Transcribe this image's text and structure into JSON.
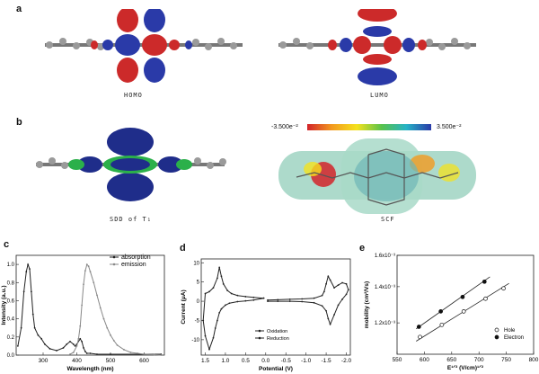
{
  "panels": {
    "a": {
      "label": "a",
      "captions": [
        "HOMO",
        "LUMO"
      ]
    },
    "b": {
      "label": "b",
      "captions": [
        "SDD of T₁",
        "SCF"
      ],
      "colorbar": {
        "min_label": "-3.500e⁻²",
        "max_label": "3.500e⁻²"
      }
    },
    "c": {
      "label": "c"
    },
    "d": {
      "label": "d"
    },
    "e": {
      "label": "e"
    }
  },
  "colors": {
    "orbital_red": "#cc2a2a",
    "orbital_blue": "#2a3aa8",
    "spin_blue": "#1f2d8a",
    "spin_green": "#2bb04a",
    "atom_grey": "#8a8a8a",
    "absorption": "#222222",
    "emission": "#888888"
  },
  "chart_data": [
    {
      "type": "line",
      "panel": "c",
      "xlabel": "Wavelength (nm)",
      "ylabel": "Intensity (a.u.)",
      "xlim": [
        220,
        660
      ],
      "ylim": [
        0,
        1.1
      ],
      "xticks": [
        "300",
        "400",
        "500",
        "600"
      ],
      "yticks": [
        "0.0",
        "0.2",
        "0.4",
        "0.6",
        "0.8",
        "1.0"
      ],
      "legend": "top-right",
      "series": [
        {
          "name": "absorption",
          "x": [
            225,
            235,
            243,
            250,
            255,
            260,
            265,
            270,
            275,
            285,
            295,
            305,
            320,
            340,
            360,
            370,
            380,
            390,
            395,
            400,
            410,
            415,
            420,
            425,
            430,
            440,
            460,
            500,
            600,
            650
          ],
          "y": [
            0.1,
            0.3,
            0.7,
            0.92,
            1.0,
            0.95,
            0.7,
            0.45,
            0.3,
            0.22,
            0.18,
            0.12,
            0.07,
            0.05,
            0.08,
            0.12,
            0.15,
            0.12,
            0.1,
            0.12,
            0.18,
            0.15,
            0.08,
            0.04,
            0.02,
            0.02,
            0.01,
            0.01,
            0.01,
            0.01
          ]
        },
        {
          "name": "emission",
          "x": [
            380,
            390,
            400,
            405,
            410,
            415,
            420,
            425,
            430,
            435,
            440,
            450,
            460,
            470,
            480,
            490,
            500,
            510,
            520,
            540,
            560,
            580,
            600,
            630,
            650
          ],
          "y": [
            0.01,
            0.03,
            0.1,
            0.18,
            0.32,
            0.55,
            0.78,
            0.93,
            1.0,
            0.98,
            0.92,
            0.8,
            0.66,
            0.52,
            0.4,
            0.3,
            0.22,
            0.16,
            0.11,
            0.06,
            0.03,
            0.02,
            0.01,
            0.005,
            0.0
          ]
        }
      ]
    },
    {
      "type": "line",
      "panel": "d",
      "xlabel": "Potential (V)",
      "ylabel": "Current (μA)",
      "xlim": [
        1.6,
        -2.1
      ],
      "ylim": [
        -14,
        11
      ],
      "xticks": [
        "1.5",
        "1.0",
        "0.5",
        "0.0",
        "-0.5",
        "-1.0",
        "-1.5",
        "-2.0"
      ],
      "yticks": [
        "-10",
        "-5",
        "0",
        "5",
        "10"
      ],
      "legend": "bottom-left",
      "series": [
        {
          "name": "Oxidation",
          "x": [
            0.05,
            0.3,
            0.5,
            0.7,
            0.85,
            0.95,
            1.05,
            1.1,
            1.15,
            1.2,
            1.3,
            1.4,
            1.5,
            1.55,
            1.5,
            1.4,
            1.3,
            1.25,
            1.2,
            1.15,
            1.1,
            1.0,
            0.9,
            0.7,
            0.5,
            0.3,
            0.05
          ],
          "y": [
            0.8,
            1.0,
            1.2,
            1.5,
            2.0,
            2.8,
            4.5,
            6.5,
            8.8,
            6.0,
            3.5,
            2.5,
            2.0,
            -5.0,
            -9.0,
            -12.5,
            -9.5,
            -7.0,
            -5.0,
            -3.0,
            -2.0,
            -1.0,
            -0.5,
            -0.1,
            0.1,
            0.3,
            0.8
          ]
        },
        {
          "name": "Reduction",
          "x": [
            -0.05,
            -0.3,
            -0.6,
            -0.9,
            -1.2,
            -1.4,
            -1.5,
            -1.55,
            -1.6,
            -1.7,
            -1.8,
            -1.9,
            -2.0,
            -2.05,
            -2.0,
            -1.9,
            -1.8,
            -1.7,
            -1.6,
            -1.55,
            -1.5,
            -1.45,
            -1.4,
            -1.2,
            -0.9,
            -0.6,
            -0.3,
            -0.05
          ],
          "y": [
            0.0,
            0.0,
            0.0,
            -0.1,
            -0.4,
            -1.2,
            -2.5,
            -4.5,
            -6.0,
            -3.5,
            -1.0,
            0.5,
            1.8,
            3.0,
            4.5,
            4.8,
            4.2,
            3.5,
            5.5,
            6.5,
            4.5,
            2.5,
            1.5,
            0.8,
            0.6,
            0.5,
            0.4,
            0.3
          ]
        }
      ]
    },
    {
      "type": "scatter",
      "panel": "e",
      "xlabel": "E¹ᐟ² (V/cm)¹ᐟ²",
      "ylabel": "mobility (cm²/Vs)",
      "xlim": [
        550,
        800
      ],
      "ylim": [
        0.00105,
        0.0016
      ],
      "ylog": true,
      "xticks": [
        "550",
        "600",
        "650",
        "700",
        "750",
        "800"
      ],
      "yticks": [
        "1.2x10⁻³",
        "1.4x10⁻³",
        "1.6x10⁻³"
      ],
      "legend": "bottom-right",
      "series": [
        {
          "name": "Hole",
          "marker": "open",
          "x": [
            592,
            632,
            672,
            712,
            745
          ],
          "y": [
            0.00113,
            0.00119,
            0.00126,
            0.00133,
            0.00139
          ],
          "fit_x": [
            585,
            755
          ],
          "fit_y": [
            0.00111,
            0.00142
          ]
        },
        {
          "name": "Electron",
          "marker": "filled",
          "x": [
            590,
            630,
            670,
            710
          ],
          "y": [
            0.00118,
            0.00126,
            0.00134,
            0.00143
          ],
          "fit_x": [
            585,
            720
          ],
          "fit_y": [
            0.00117,
            0.00146
          ]
        }
      ]
    }
  ]
}
